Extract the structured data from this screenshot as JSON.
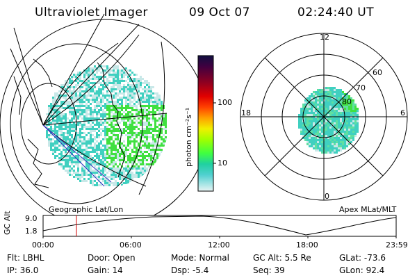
{
  "header": {
    "title": "Ultraviolet Imager",
    "date": "09 Oct 07",
    "time": "02:24:40 UT"
  },
  "left_panel": {
    "label": "Geographic Lat/Lon"
  },
  "right_panel": {
    "label": "Apex MLat/MLT",
    "mlt_labels": [
      "12",
      "18",
      "6",
      "0"
    ],
    "lat_labels": [
      "60",
      "70",
      "80"
    ]
  },
  "colorbar": {
    "unit_label": "photon cm⁻²s⁻¹",
    "ticks": [
      "100",
      "10"
    ],
    "colors": [
      "#101040",
      "#400040",
      "#800020",
      "#c00000",
      "#ff2000",
      "#ff9000",
      "#ffe000",
      "#d0ff00",
      "#60ff20",
      "#20e090",
      "#40d0d0",
      "#a0e0e0",
      "#e0f0f0"
    ]
  },
  "timeline": {
    "ylabel": "GC Alt",
    "ymax_label": "9.0",
    "ymin_label": "1.8",
    "time_ticks": [
      "00:00",
      "06:00",
      "12:00",
      "18:00",
      "23:59"
    ],
    "marker_color": "#d00000"
  },
  "info": {
    "flt": "Flt: LBHL",
    "door": "Door: Open",
    "mode": "Mode: Normal",
    "gc_alt": "GC Alt: 5.5 Re",
    "glat": "GLat: -73.6",
    "ip": "IP: 36.0",
    "gain": "Gain: 14",
    "dsp": "Dsp:   -5.4",
    "seq": "Seq: 39",
    "glon": "GLon:  92.4"
  },
  "colors": {
    "aurora_green": "#40e040",
    "aurora_cyan": "#40d0c0",
    "haze": "#c8e8e8",
    "track": "#3030c0"
  }
}
